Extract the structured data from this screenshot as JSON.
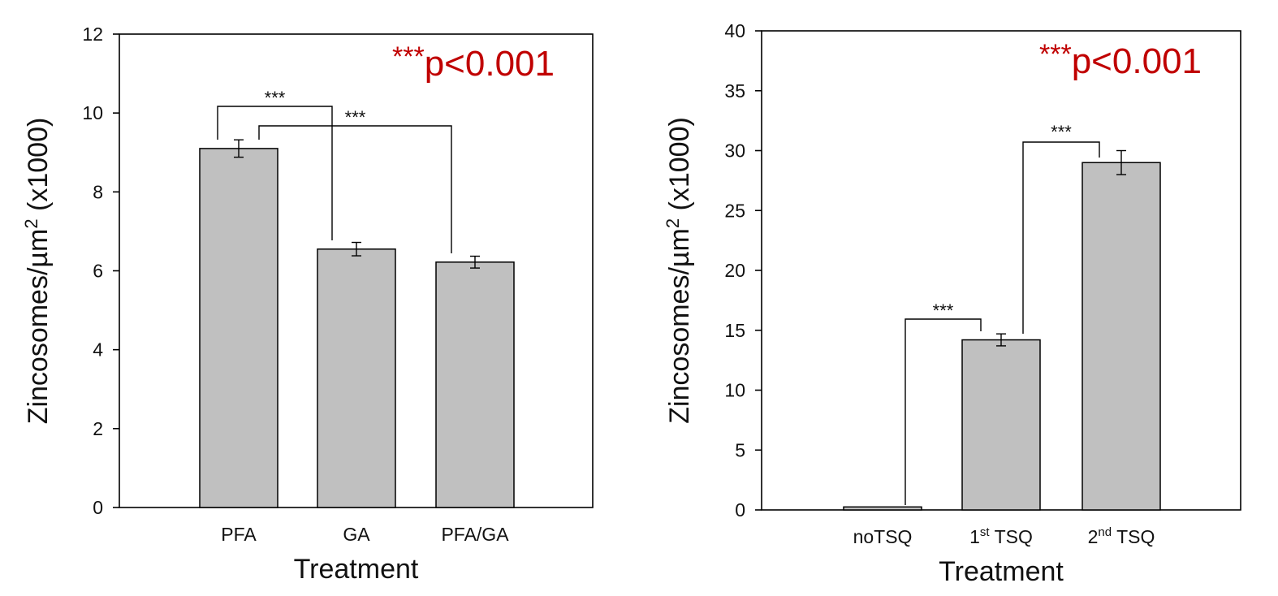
{
  "colors": {
    "bar_fill": "#c0c0c0",
    "bar_stroke": "#000000",
    "annotation": "#c00000"
  },
  "chart_data": [
    {
      "type": "bar",
      "categories": [
        {
          "main": "PFA",
          "sup": "",
          "rest": ""
        },
        {
          "main": "GA",
          "sup": "",
          "rest": ""
        },
        {
          "main": "PFA/GA",
          "sup": "",
          "rest": ""
        }
      ],
      "values": [
        9.1,
        6.55,
        6.22
      ],
      "errors": [
        0.22,
        0.17,
        0.15
      ],
      "ylim": [
        0,
        12
      ],
      "yticks": [
        0,
        2,
        4,
        6,
        8,
        10,
        12
      ],
      "ylabel": {
        "main": "Zincosomes/µm",
        "sup": "2",
        "rest": " (x1000)"
      },
      "xlabel": "Treatment",
      "annotation": {
        "stars": "***",
        "text": "p<0.001"
      },
      "significance": [
        {
          "from": 0,
          "to": 1,
          "label": "***"
        },
        {
          "from": 0,
          "to": 2,
          "label": "***"
        }
      ]
    },
    {
      "type": "bar",
      "categories": [
        {
          "main": "noTSQ",
          "sup": "",
          "rest": ""
        },
        {
          "main": "1",
          "sup": "st",
          "rest": " TSQ"
        },
        {
          "main": "2",
          "sup": "nd",
          "rest": " TSQ"
        }
      ],
      "values": [
        0.25,
        14.2,
        29.0
      ],
      "errors": [
        0.0,
        0.5,
        1.0
      ],
      "ylim": [
        0,
        40
      ],
      "yticks": [
        0,
        5,
        10,
        15,
        20,
        25,
        30,
        35,
        40
      ],
      "ylabel": {
        "main": "Zincosomes/µm",
        "sup": "2",
        "rest": " (x1000)"
      },
      "xlabel": "Treatment",
      "annotation": {
        "stars": "***",
        "text": "p<0.001"
      },
      "significance": [
        {
          "from": 0,
          "to": 1,
          "label": "***"
        },
        {
          "from": 1,
          "to": 2,
          "label": "***"
        }
      ]
    }
  ]
}
